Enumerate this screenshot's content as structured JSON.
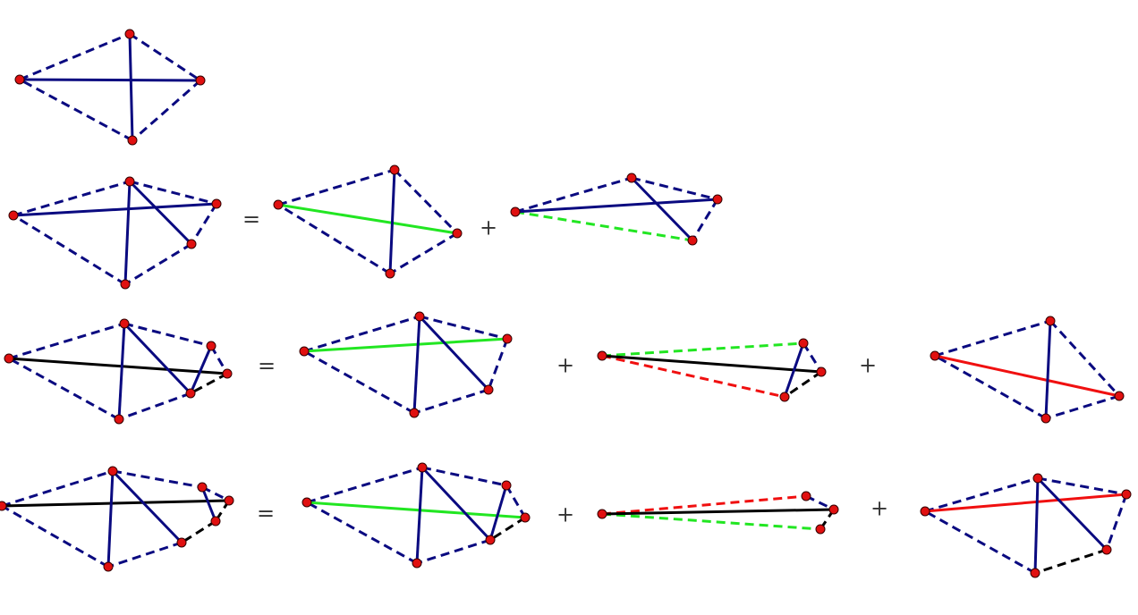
{
  "rows": [
    {
      "operators": []
    },
    {
      "operators": [
        "=",
        "+"
      ]
    },
    {
      "operators": [
        "=",
        "+",
        "+"
      ]
    },
    {
      "operators": [
        "=",
        "+",
        "+"
      ]
    }
  ]
}
